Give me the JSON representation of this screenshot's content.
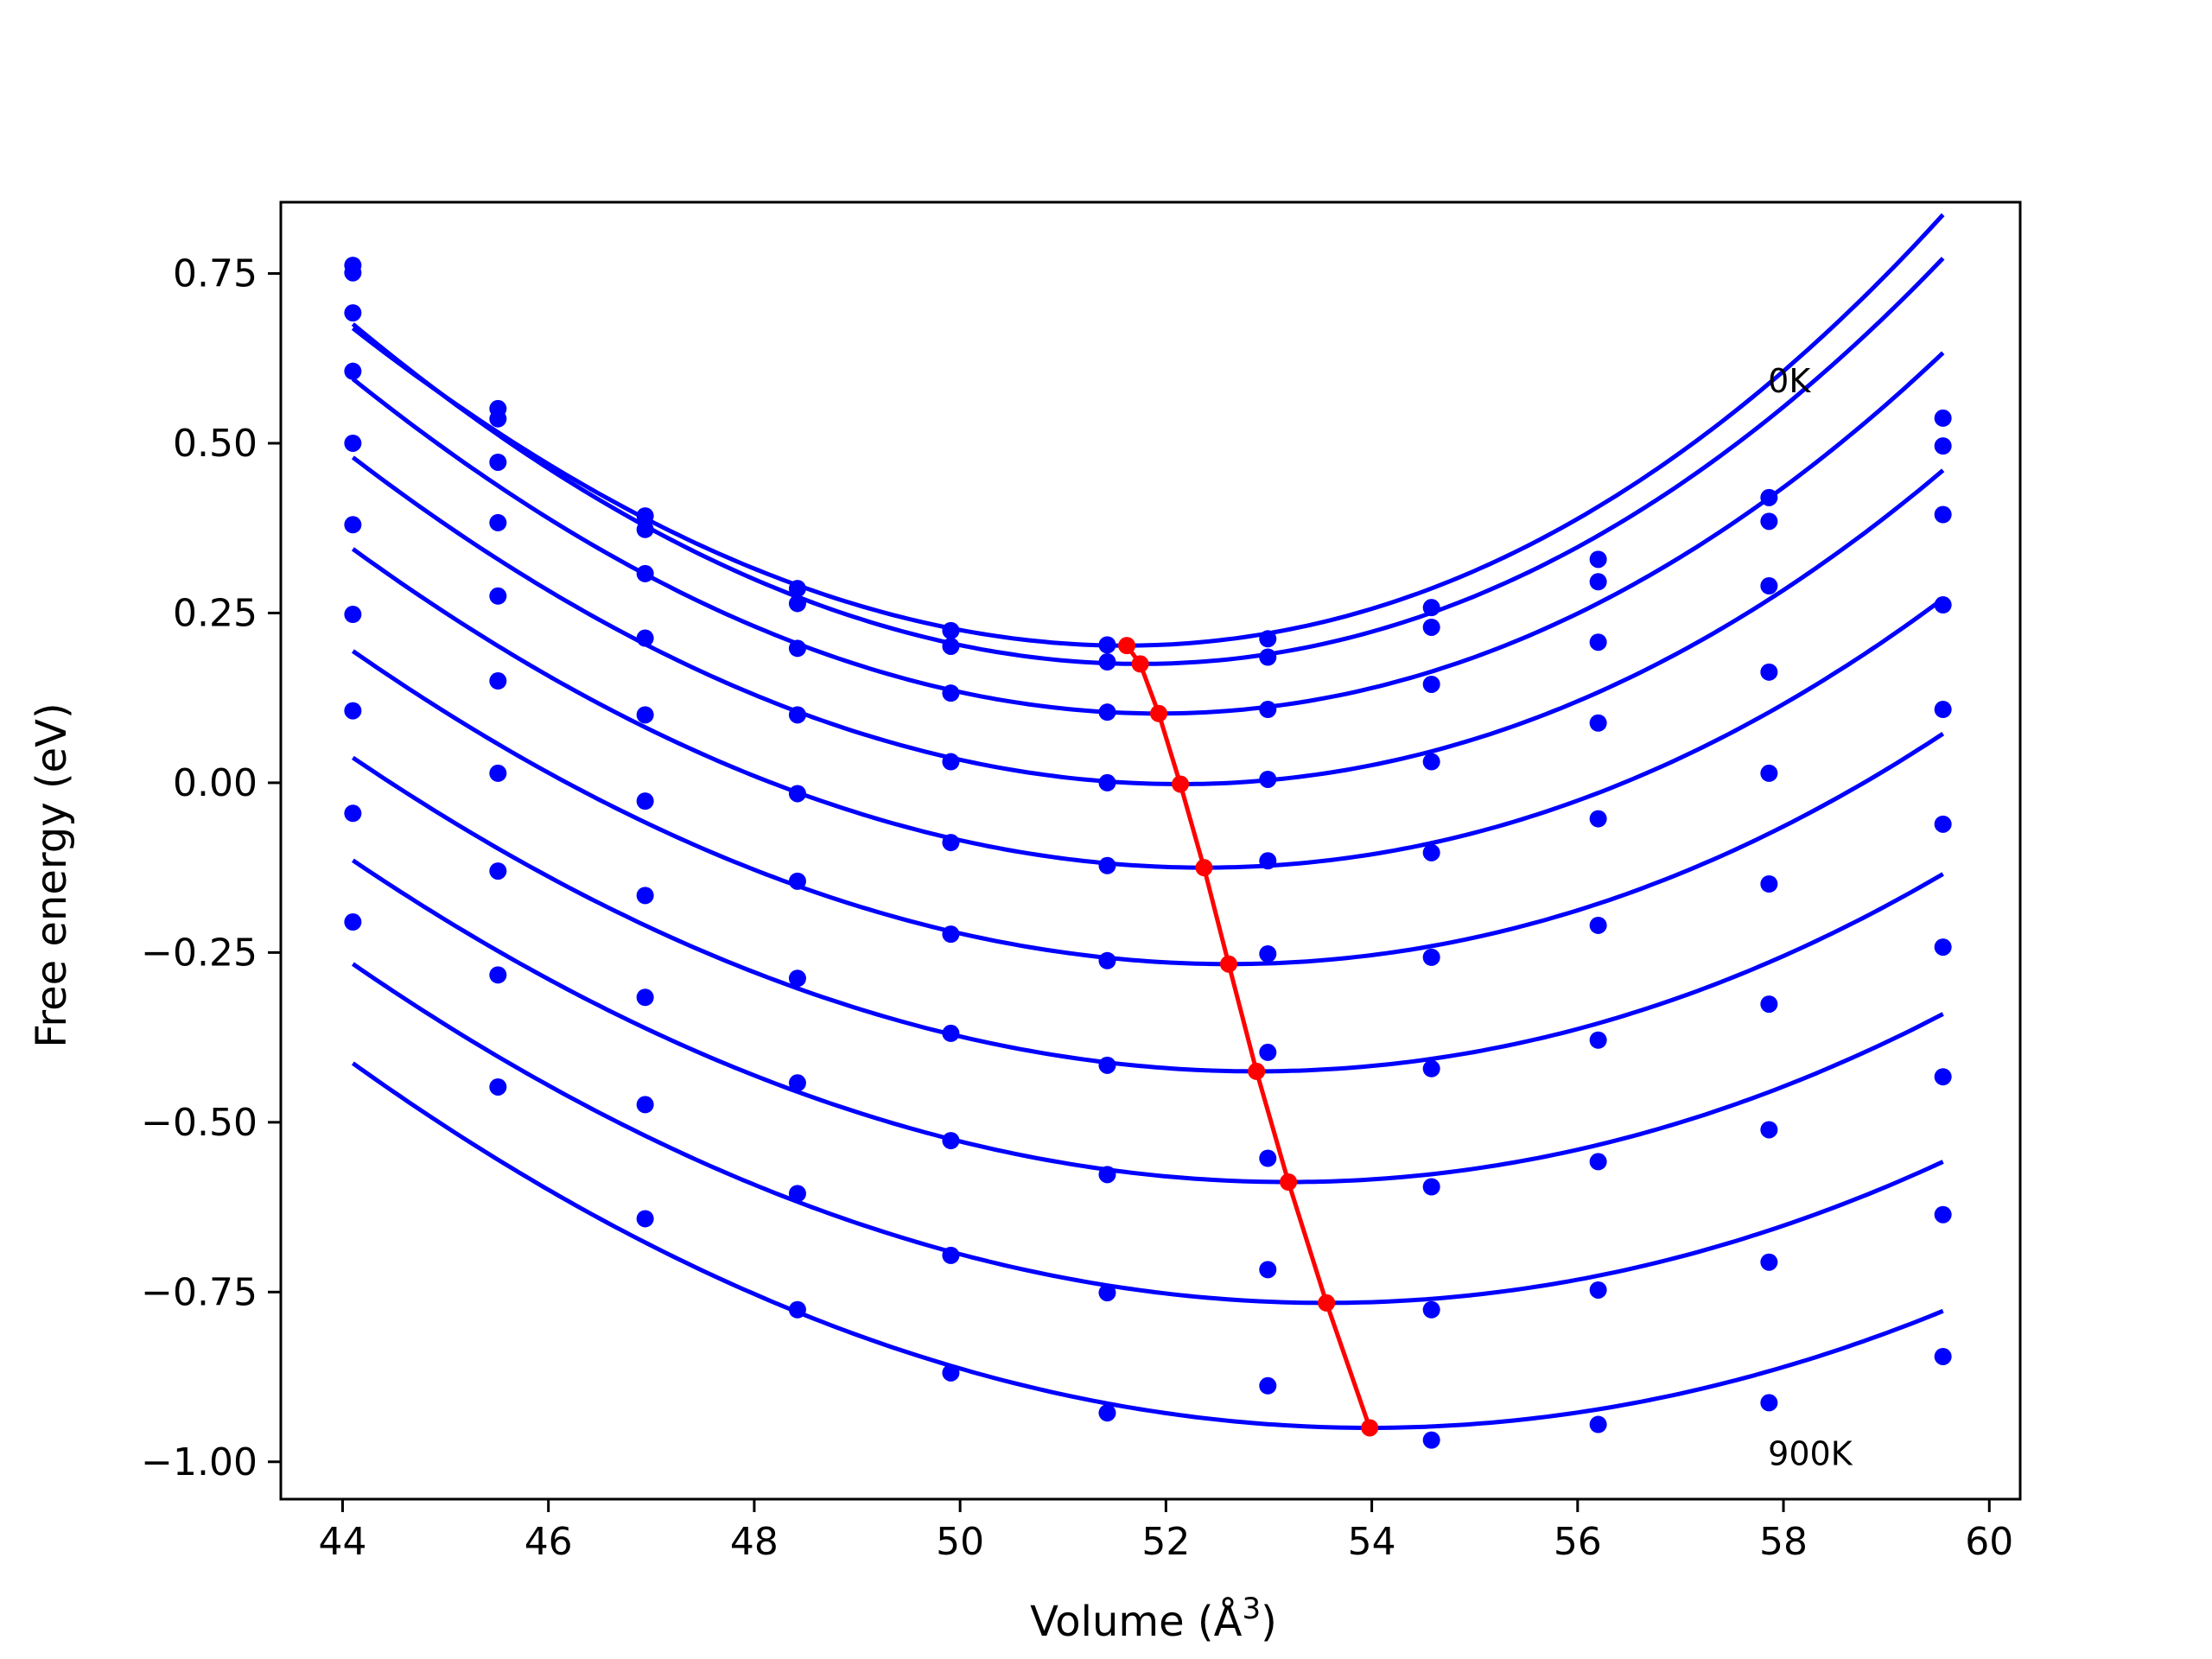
{
  "chart_data": {
    "type": "line",
    "title": "",
    "xlabel": "Volume (Å",
    "xlabel_sup": "3",
    "xlabel_close": ")",
    "ylabel": "Free energy (eV)",
    "xlim": [
      43.4,
      60.3
    ],
    "ylim": [
      -1.055,
      0.855
    ],
    "xticks": [
      44,
      46,
      48,
      50,
      52,
      54,
      56,
      58,
      60
    ],
    "xtick_labels": [
      "44",
      "46",
      "48",
      "50",
      "52",
      "54",
      "56",
      "58",
      "60"
    ],
    "yticks": [
      0.75,
      0.5,
      0.25,
      0.0,
      -0.25,
      -0.5,
      -0.75,
      -1.0
    ],
    "ytick_labels": [
      "0.75",
      "0.50",
      "0.25",
      "0.00",
      "−0.25",
      "−0.50",
      "−0.75",
      "−1.00"
    ],
    "grid": false,
    "colors": {
      "curves": "#0000ff",
      "minima": "#ff0000",
      "axes": "#000000"
    },
    "x": [
      44.1,
      45.51,
      46.94,
      48.42,
      49.91,
      51.43,
      52.99,
      54.58,
      56.2,
      57.86,
      59.55
    ],
    "series": [
      {
        "values": [
          0.762,
          0.551,
          0.393,
          0.286,
          0.224,
          0.203,
          0.212,
          0.258,
          0.329,
          0.42,
          0.537
        ]
      },
      {
        "values": [
          0.751,
          0.536,
          0.373,
          0.264,
          0.201,
          0.178,
          0.185,
          0.229,
          0.296,
          0.385,
          0.496
        ]
      },
      {
        "values": [
          0.692,
          0.472,
          0.308,
          0.198,
          0.132,
          0.104,
          0.108,
          0.145,
          0.207,
          0.29,
          0.395
        ]
      },
      {
        "values": [
          0.606,
          0.383,
          0.213,
          0.1,
          0.031,
          0.0,
          0.005,
          0.031,
          0.088,
          0.163,
          0.262
        ]
      },
      {
        "values": [
          0.5,
          0.275,
          0.1,
          -0.016,
          -0.088,
          -0.122,
          -0.115,
          -0.103,
          -0.053,
          0.014,
          0.108
        ]
      },
      {
        "values": [
          0.38,
          0.15,
          -0.027,
          -0.145,
          -0.223,
          -0.262,
          -0.252,
          -0.257,
          -0.21,
          -0.149,
          -0.061
        ]
      },
      {
        "values": [
          0.248,
          0.014,
          -0.166,
          -0.288,
          -0.369,
          -0.416,
          -0.397,
          -0.421,
          -0.379,
          -0.326,
          -0.242
        ]
      },
      {
        "values": [
          0.106,
          -0.13,
          -0.316,
          -0.442,
          -0.527,
          -0.577,
          -0.553,
          -0.595,
          -0.558,
          -0.511,
          -0.433
        ]
      },
      {
        "values": [
          -0.045,
          -0.283,
          -0.474,
          -0.605,
          -0.696,
          -0.751,
          -0.717,
          -0.776,
          -0.747,
          -0.706,
          -0.636
        ]
      },
      {
        "values": [
          -0.205,
          -0.448,
          -0.642,
          -0.776,
          -0.869,
          -0.928,
          -0.888,
          -0.968,
          -0.945,
          -0.913,
          -0.845
        ]
      }
    ],
    "fit_curves": [
      {
        "vmin": 51.6,
        "emin": 0.202,
        "b": 0.00915,
        "c": 0.000112
      },
      {
        "vmin": 51.75,
        "emin": 0.175,
        "b": 0.00918,
        "c": 8.2e-05
      },
      {
        "vmin": 51.93,
        "emin": 0.102,
        "b": 0.0086,
        "c": 7.2e-05
      },
      {
        "vmin": 52.14,
        "emin": -0.002,
        "b": 0.00795,
        "c": 6.3e-05
      },
      {
        "vmin": 52.37,
        "emin": -0.125,
        "b": 0.0073,
        "c": 5.3e-05
      },
      {
        "vmin": 52.61,
        "emin": -0.267,
        "b": 0.00674,
        "c": 4.4e-05
      },
      {
        "vmin": 52.88,
        "emin": -0.425,
        "b": 0.0063,
        "c": 3.5e-05
      },
      {
        "vmin": 53.19,
        "emin": -0.588,
        "b": 0.00596,
        "c": 2.5e-05
      },
      {
        "vmin": 53.56,
        "emin": -0.766,
        "b": 0.00571,
        "c": 1.4e-05
      },
      {
        "vmin": 53.98,
        "emin": -0.95,
        "b": 0.00553,
        "c": 3e-06
      }
    ],
    "minima": {
      "x": [
        51.62,
        51.75,
        51.93,
        52.14,
        52.37,
        52.61,
        52.88,
        53.19,
        53.56,
        53.98
      ],
      "y": [
        0.202,
        0.175,
        0.102,
        -0.002,
        -0.125,
        -0.267,
        -0.425,
        -0.588,
        -0.766,
        -0.95
      ]
    },
    "annotations": [
      {
        "text": "0K",
        "x": 57.85,
        "y": 0.575
      },
      {
        "text": "900K",
        "x": 57.85,
        "y": -1.005
      }
    ]
  }
}
